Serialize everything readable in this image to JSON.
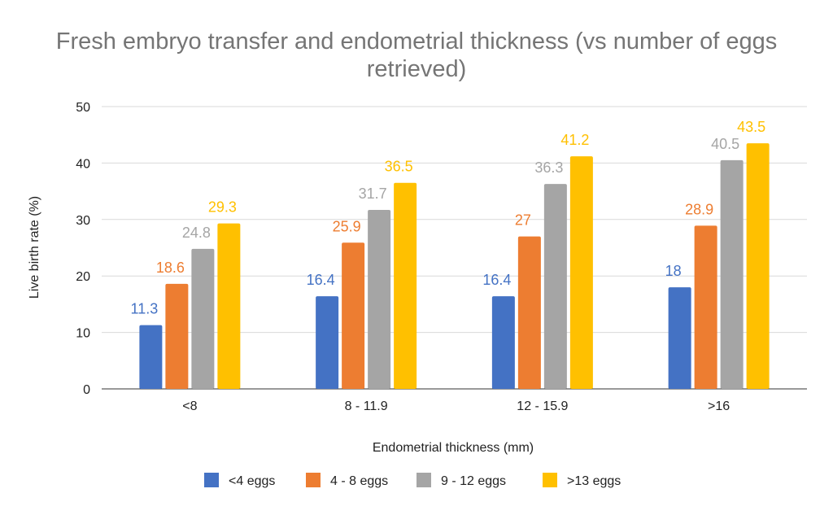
{
  "chart_data": {
    "type": "bar",
    "title_lines": [
      "Fresh embryo transfer and endometrial thickness (vs number of eggs",
      "retrieved)"
    ],
    "xlabel": "Endometrial thickness (mm)",
    "ylabel": "Live birth rate (%)",
    "categories": [
      "<8",
      "8 - 11.9",
      "12 - 15.9",
      ">16"
    ],
    "ylim": [
      0,
      50
    ],
    "yticks": [
      0,
      10,
      20,
      30,
      40,
      50
    ],
    "grid": true,
    "legend_position": "bottom",
    "series": [
      {
        "name": "<4 eggs",
        "color": "#4472C4",
        "values": [
          11.3,
          16.4,
          16.4,
          18
        ]
      },
      {
        "name": "4 - 8 eggs",
        "color": "#ED7D31",
        "values": [
          18.6,
          25.9,
          27,
          28.9
        ]
      },
      {
        "name": "9 - 12 eggs",
        "color": "#A5A5A5",
        "values": [
          24.8,
          31.7,
          36.3,
          40.5
        ]
      },
      {
        "name": ">13 eggs",
        "color": "#FFC000",
        "values": [
          29.3,
          36.5,
          41.2,
          43.5
        ]
      }
    ]
  }
}
